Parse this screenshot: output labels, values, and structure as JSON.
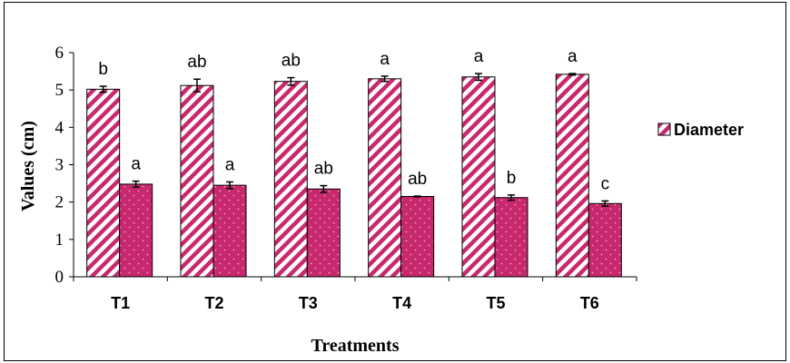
{
  "chart_data": {
    "type": "bar",
    "categories": [
      "T1",
      "T2",
      "T3",
      "T4",
      "T5",
      "T6"
    ],
    "series": [
      {
        "name": "Diameter",
        "values": [
          5.02,
          5.12,
          5.23,
          5.3,
          5.35,
          5.42
        ],
        "errors": [
          0.08,
          0.17,
          0.1,
          0.07,
          0.09,
          0.02
        ],
        "labels": [
          "b",
          "ab",
          "ab",
          "a",
          "a",
          "a"
        ],
        "color": "#c8296e",
        "fill": "diagonal-stripes"
      },
      {
        "values": [
          2.48,
          2.45,
          2.35,
          2.15,
          2.12,
          1.96
        ],
        "errors": [
          0.08,
          0.09,
          0.09,
          0.01,
          0.07,
          0.07
        ],
        "labels": [
          "a",
          "a",
          "ab",
          "ab",
          "b",
          "c"
        ],
        "color": "#c8296e",
        "fill": "dotted-solid"
      }
    ],
    "xlabel": "Treatments",
    "ylabel": "Values (cm)",
    "ylim": [
      0,
      6
    ],
    "yticks": [
      "0",
      "1",
      "2",
      "3",
      "4",
      "5",
      "6"
    ],
    "grid": false,
    "legend": "right"
  }
}
